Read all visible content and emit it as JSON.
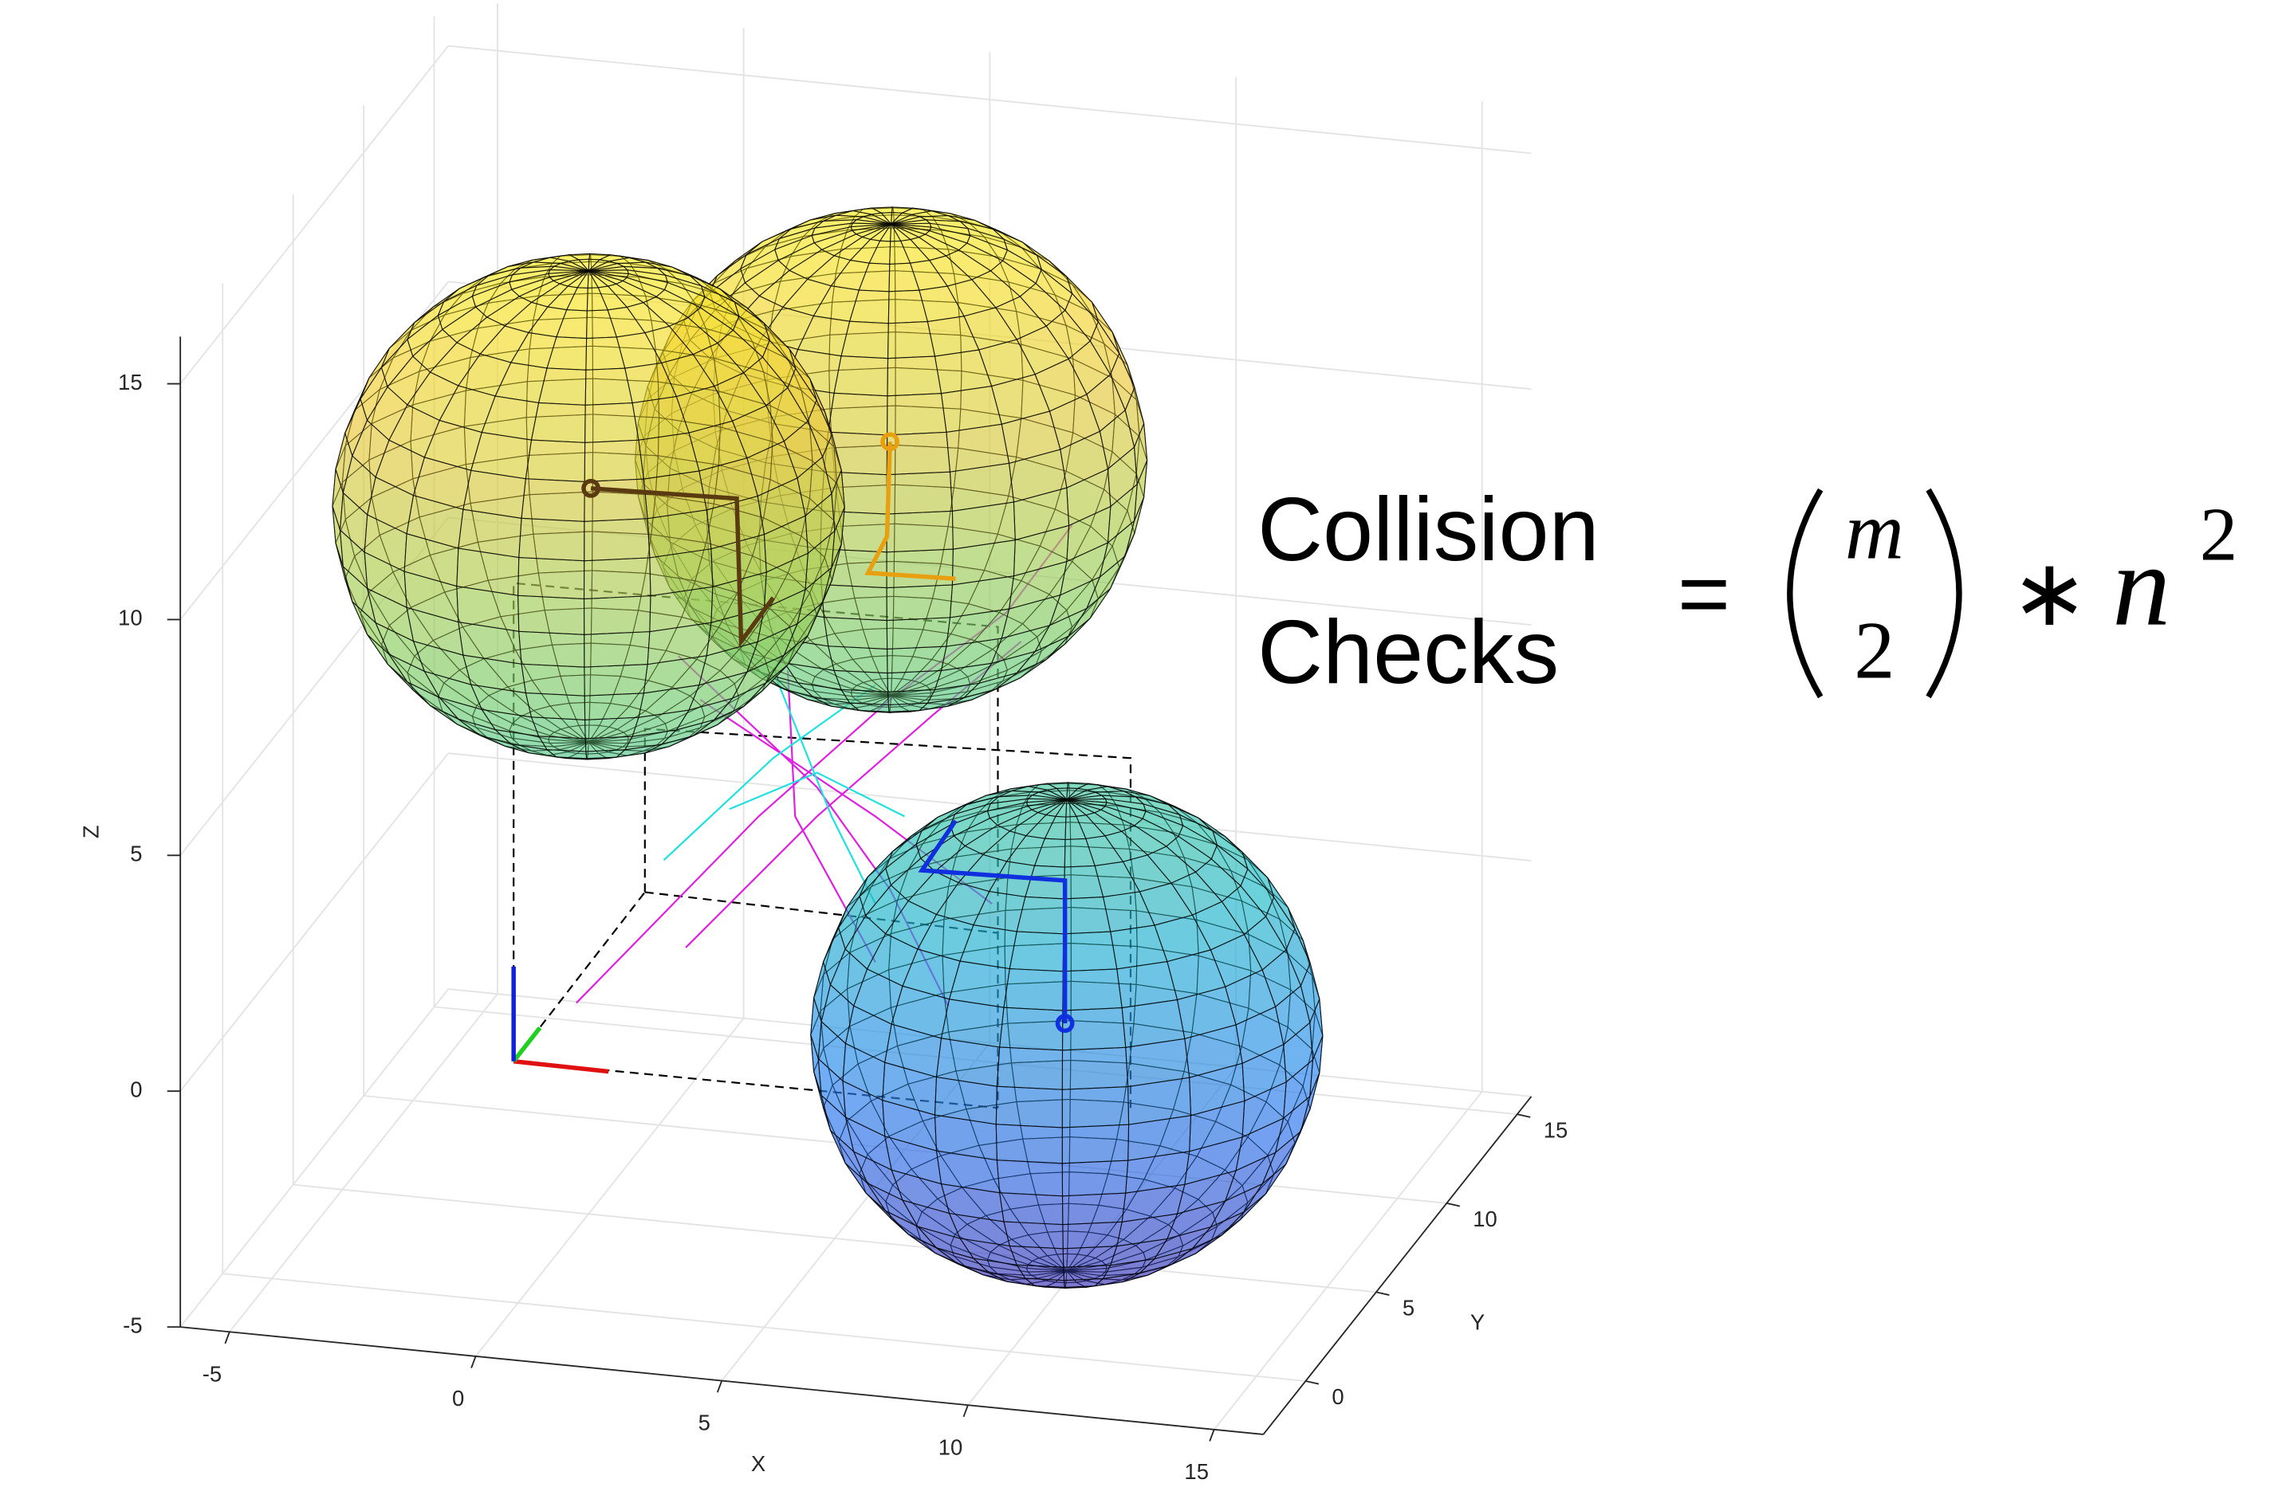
{
  "chart_data": {
    "type": "surface3d",
    "xlabel": "X",
    "ylabel": "Y",
    "zlabel": "Z",
    "xlim": [
      -6,
      16
    ],
    "ylim": [
      -3,
      16
    ],
    "zlim": [
      -5,
      16
    ],
    "xticks": [
      -5,
      0,
      5,
      10,
      15
    ],
    "yticks": [
      0,
      5,
      10,
      15
    ],
    "zticks": [
      -5,
      0,
      5,
      10,
      15
    ],
    "grid": true,
    "colormap": [
      "#3e26a8",
      "#2b7ff6",
      "#1fc0c2",
      "#8ecf5a",
      "#f0c83a",
      "#f9fb15"
    ],
    "spheres": [
      {
        "center": [
          0,
          5,
          10
        ],
        "radius": 5
      },
      {
        "center": [
          5,
          9,
          10
        ],
        "radius": 5
      },
      {
        "center": [
          10,
          4,
          0.2
        ],
        "radius": 5
      }
    ],
    "annotation": {
      "lines": [
        "Collision",
        "Checks"
      ],
      "equals": "=",
      "binomial_top": "m",
      "binomial_bottom": "2",
      "operator": "∗",
      "base": "n",
      "exponent": "2"
    }
  }
}
